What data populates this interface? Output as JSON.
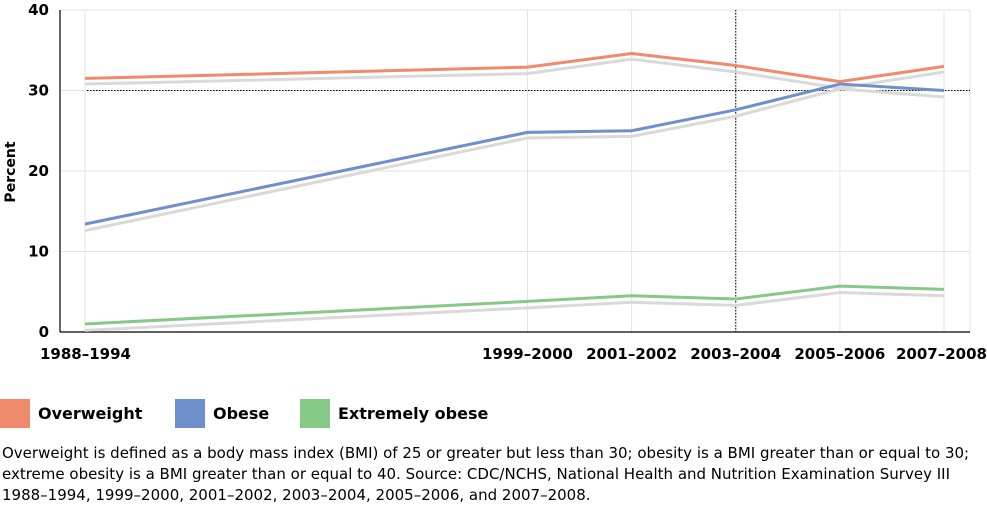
{
  "chart_data": {
    "type": "line",
    "ylabel": "Percent",
    "xlabel": "",
    "ylim": [
      0,
      40
    ],
    "yticks": [
      "0",
      "10",
      "20",
      "30",
      "40"
    ],
    "categories": [
      "1988–1994",
      "1999–2000",
      "2001–2002",
      "2003–2004",
      "2005–2006",
      "2007–2008"
    ],
    "category_positions": [
      1991,
      1999.5,
      2001.5,
      2003.5,
      2005.5,
      2007.5
    ],
    "x_range": [
      1991,
      2007.5
    ],
    "reference_line_y": 30,
    "grid": true,
    "legend_placement": "bottom",
    "series": [
      {
        "name": "Overweight",
        "color": "#f08a6c",
        "values": [
          31.5,
          32.9,
          34.6,
          33.1,
          31.1,
          33.0
        ],
        "shadow": [
          30.8,
          32.1,
          33.9,
          32.3,
          30.3,
          32.3
        ]
      },
      {
        "name": "Obese",
        "color": "#6f8fcc",
        "values": [
          13.4,
          24.8,
          25.0,
          27.6,
          30.8,
          30.0
        ],
        "shadow": [
          12.6,
          24.1,
          24.3,
          26.8,
          30.2,
          29.2
        ]
      },
      {
        "name": "Extremely obese",
        "color": "#86c886",
        "values": [
          1.0,
          3.8,
          4.5,
          4.1,
          5.7,
          5.3
        ],
        "shadow": [
          0.2,
          3.0,
          3.7,
          3.3,
          4.9,
          4.5
        ]
      }
    ],
    "shadow_color": "#d9d9d9"
  },
  "caption": "Overweight is defined as a body mass index (BMI) of 25 or greater but less than 30; obesity is a BMI greater than or equal to 30; extreme obesity is a BMI greater than or equal to 40. Source: CDC/NCHS, National Health and Nutrition Examination Survey III 1988–1994, 1999–2000, 2001–2002, 2003–2004, 2005–2006, and 2007–2008."
}
